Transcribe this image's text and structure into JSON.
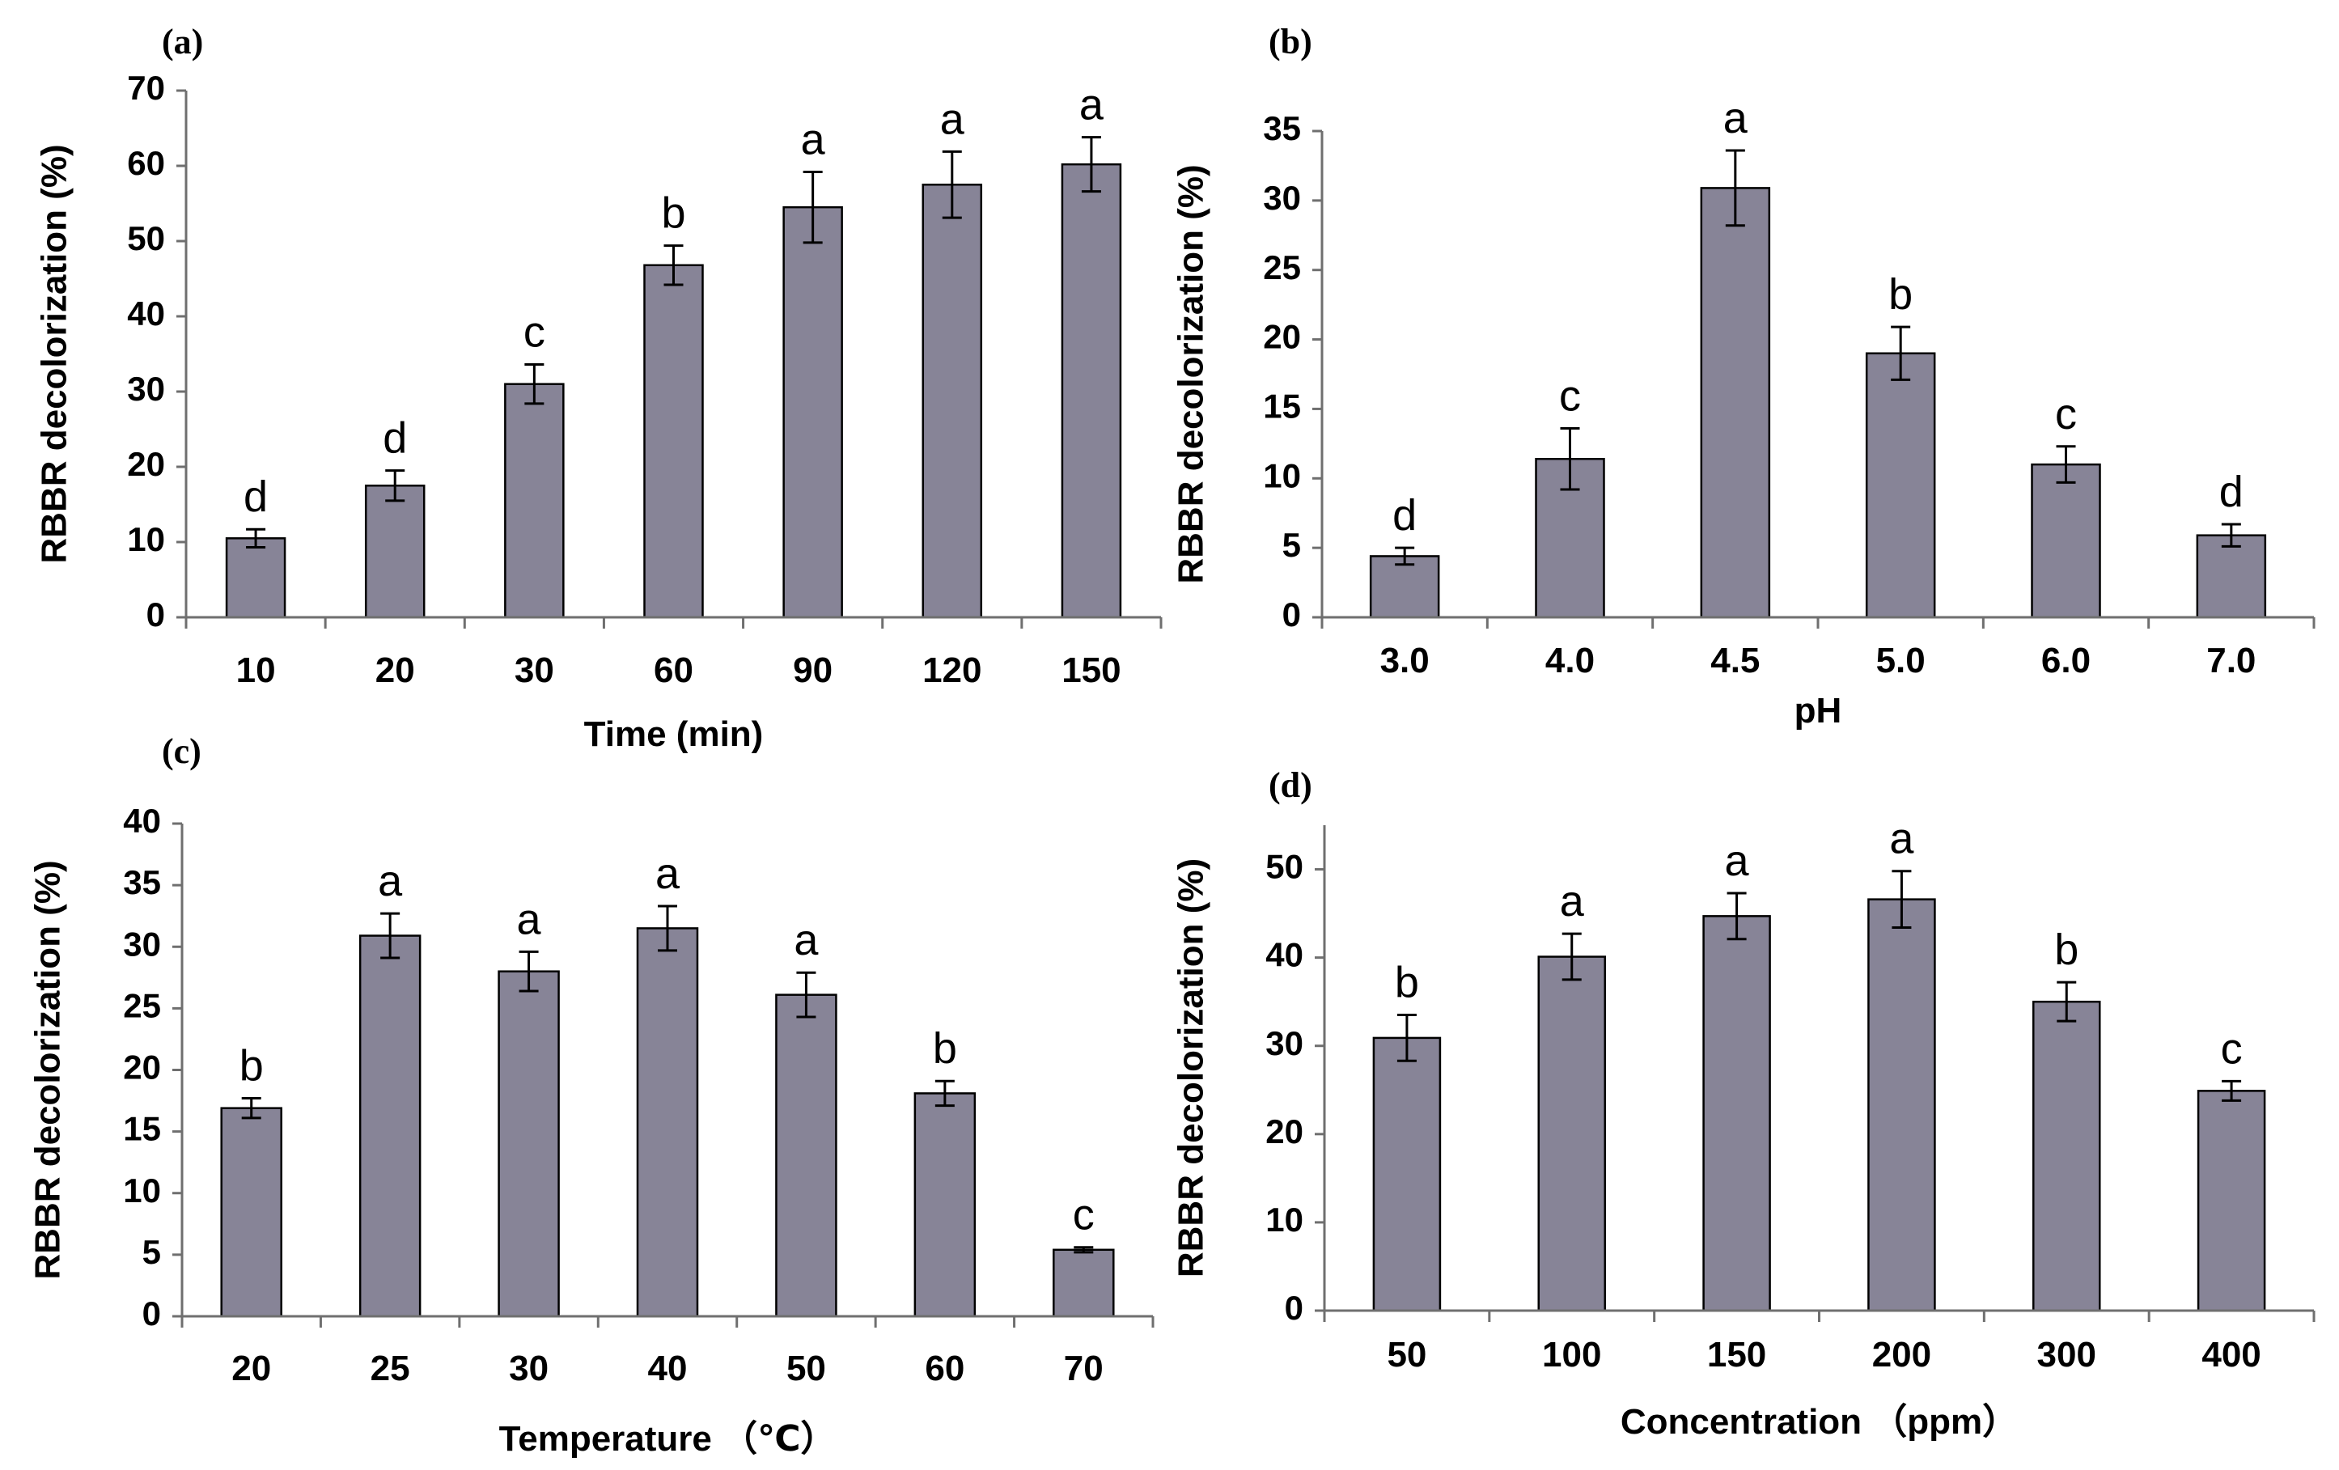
{
  "colors": {
    "bar_fill": "#878497",
    "bar_stroke": "#000000",
    "axis": "#6f6f6f",
    "text": "#000000"
  },
  "chart_data": [
    {
      "panel": "(a)",
      "type": "bar",
      "title": "",
      "xlabel": "Time (min)",
      "ylabel": "RBBR decolorization (%)",
      "categories": [
        "10",
        "20",
        "30",
        "60",
        "90",
        "120",
        "150"
      ],
      "values": [
        10.5,
        17.5,
        31,
        46.8,
        54.5,
        57.5,
        60.2
      ],
      "errors": [
        1.2,
        2,
        2.6,
        2.6,
        4.7,
        4.4,
        3.6
      ],
      "letters": [
        "d",
        "d",
        "c",
        "b",
        "a",
        "a",
        "a"
      ],
      "ylim": [
        0,
        70
      ],
      "yticks": [
        0,
        10,
        20,
        30,
        40,
        50,
        60,
        70
      ],
      "grid": false,
      "legend": "none"
    },
    {
      "panel": "(b)",
      "type": "bar",
      "title": "",
      "xlabel": "pH",
      "ylabel": "RBBR decolorization (%)",
      "categories": [
        "3.0",
        "4.0",
        "4.5",
        "5.0",
        "6.0",
        "7.0"
      ],
      "values": [
        4.4,
        11.4,
        30.9,
        19,
        11,
        5.9
      ],
      "errors": [
        0.6,
        2.2,
        2.7,
        1.9,
        1.3,
        0.8
      ],
      "letters": [
        "d",
        "c",
        "a",
        "b",
        "c",
        "d"
      ],
      "ylim": [
        0,
        35
      ],
      "yticks": [
        0,
        5,
        10,
        15,
        20,
        25,
        30,
        35
      ],
      "grid": false,
      "legend": "none"
    },
    {
      "panel": "(c)",
      "type": "bar",
      "title": "",
      "xlabel": "Temperature （℃）",
      "ylabel": "RBBR decolorization (%)",
      "categories": [
        "20",
        "25",
        "30",
        "40",
        "50",
        "60",
        "70"
      ],
      "values": [
        16.9,
        30.9,
        28,
        31.5,
        26.1,
        18.1,
        5.4
      ],
      "errors": [
        0.8,
        1.8,
        1.6,
        1.8,
        1.8,
        1.0,
        0.2
      ],
      "letters": [
        "b",
        "a",
        "a",
        "a",
        "a",
        "b",
        "c"
      ],
      "ylim": [
        0,
        40
      ],
      "yticks": [
        0,
        5,
        10,
        15,
        20,
        25,
        30,
        35,
        40
      ],
      "grid": false,
      "legend": "none"
    },
    {
      "panel": "(d)",
      "type": "bar",
      "title": "",
      "xlabel": "Concentration （ppm）",
      "ylabel": "RBBR decolorization (%)",
      "categories": [
        "50",
        "100",
        "150",
        "200",
        "300",
        "400"
      ],
      "values": [
        30.9,
        40.1,
        44.7,
        46.6,
        35,
        24.9
      ],
      "errors": [
        2.6,
        2.6,
        2.6,
        3.2,
        2.2,
        1.1
      ],
      "letters": [
        "b",
        "a",
        "a",
        "a",
        "b",
        "c"
      ],
      "ylim": [
        0,
        55
      ],
      "yticks": [
        0,
        10,
        20,
        30,
        40,
        50
      ],
      "grid": false,
      "legend": "none"
    }
  ]
}
